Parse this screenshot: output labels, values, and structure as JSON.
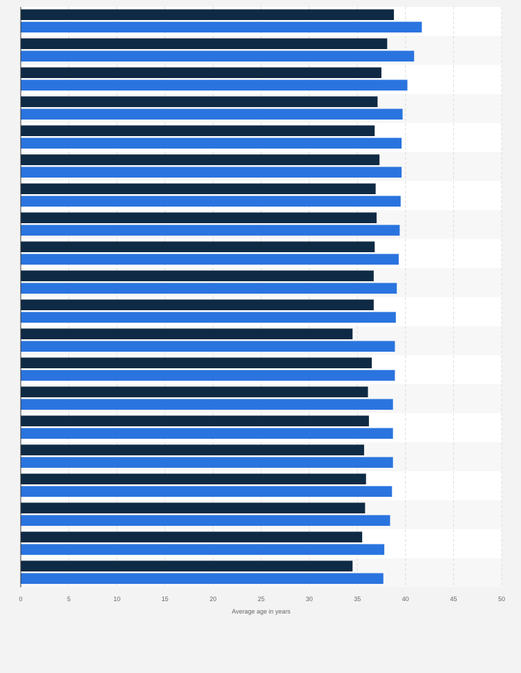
{
  "chart_data": {
    "type": "bar",
    "orientation": "horizontal",
    "categories": [
      "",
      "",
      "",
      "",
      "",
      "",
      "",
      "",
      "",
      "",
      "",
      "",
      "",
      "",
      "",
      "",
      "",
      "",
      "",
      ""
    ],
    "series": [
      {
        "color": "#0f2a44",
        "values": [
          38.8,
          38.1,
          37.5,
          37.1,
          36.8,
          37.3,
          36.9,
          37.0,
          36.8,
          36.7,
          36.7,
          34.5,
          36.5,
          36.1,
          36.2,
          35.7,
          35.9,
          35.8,
          35.5,
          34.5
        ]
      },
      {
        "color": "#2a74df",
        "values": [
          41.7,
          40.9,
          40.2,
          39.7,
          39.6,
          39.6,
          39.5,
          39.4,
          39.3,
          39.1,
          39.0,
          38.9,
          38.9,
          38.7,
          38.7,
          38.7,
          38.6,
          38.4,
          37.8,
          37.7
        ]
      }
    ],
    "xlim": [
      0,
      50
    ],
    "xticks": [
      "0",
      "5",
      "10",
      "15",
      "20",
      "25",
      "30",
      "35",
      "40",
      "45",
      "50"
    ],
    "xlabel": "Average age in years",
    "grid": true,
    "legend": "none"
  }
}
